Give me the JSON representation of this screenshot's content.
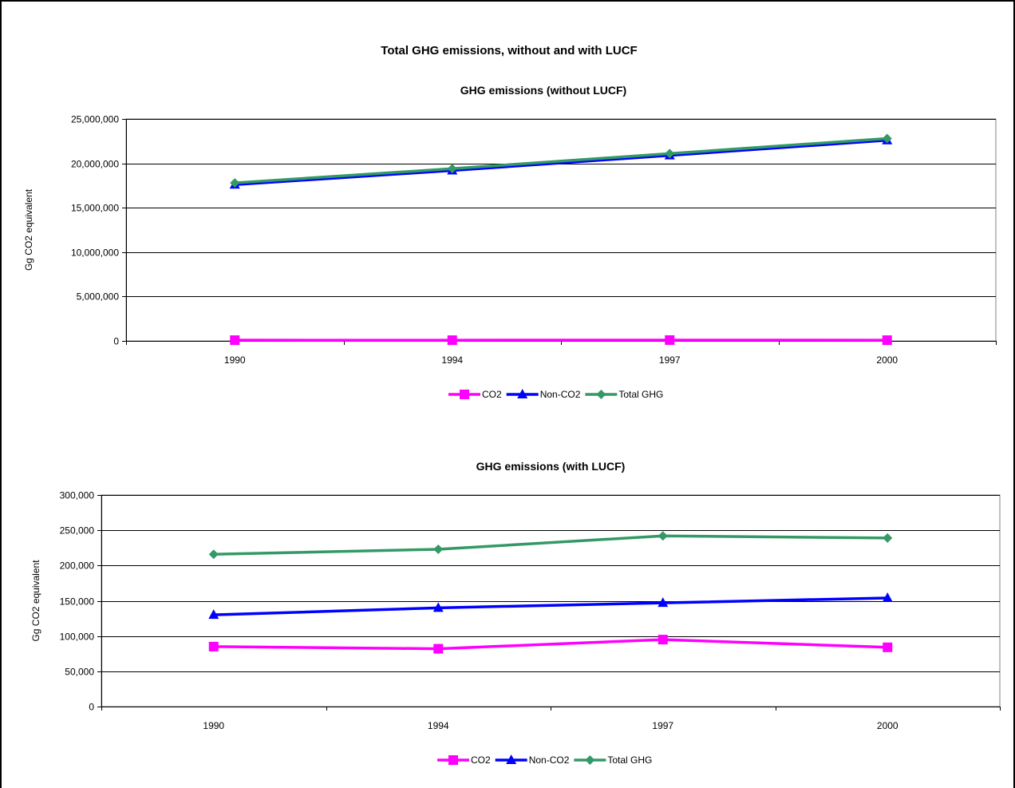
{
  "main_title": "Total GHG emissions, without and with LUCF",
  "chart_data": [
    {
      "type": "line",
      "title": "GHG emissions (without LUCF)",
      "ylabel": "Gg CO2 equivalent",
      "xlabel": "",
      "categories": [
        "1990",
        "1994",
        "1997",
        "2000"
      ],
      "ylim": [
        0,
        25000000
      ],
      "yticks": [
        0,
        5000000,
        10000000,
        15000000,
        20000000,
        25000000
      ],
      "ytick_labels": [
        "0",
        "5,000,000",
        "10,000,000",
        "15,000,000",
        "20,000,000",
        "25,000,000"
      ],
      "grid": true,
      "legend": "bottom",
      "series": [
        {
          "name": "CO2",
          "color": "#FF00FF",
          "marker": "square",
          "values": [
            85000,
            82000,
            95000,
            84000
          ]
        },
        {
          "name": "Non-CO2",
          "color": "#0000FF",
          "marker": "triangle",
          "values": [
            17600000,
            19200000,
            20900000,
            22600000
          ]
        },
        {
          "name": "Total GHG",
          "color": "#339966",
          "marker": "diamond",
          "values": [
            17800000,
            19400000,
            21100000,
            22800000
          ]
        }
      ]
    },
    {
      "type": "line",
      "title": "GHG emissions (with LUCF)",
      "ylabel": "Gg CO2 equivalent",
      "xlabel": "",
      "categories": [
        "1990",
        "1994",
        "1997",
        "2000"
      ],
      "ylim": [
        0,
        300000
      ],
      "yticks": [
        0,
        50000,
        100000,
        150000,
        200000,
        250000,
        300000
      ],
      "ytick_labels": [
        "0",
        "50,000",
        "100,000",
        "150,000",
        "200,000",
        "250,000",
        "300,000"
      ],
      "grid": true,
      "legend": "bottom",
      "series": [
        {
          "name": "CO2",
          "color": "#FF00FF",
          "marker": "square",
          "values": [
            85000,
            82000,
            95000,
            84000
          ]
        },
        {
          "name": "Non-CO2",
          "color": "#0000FF",
          "marker": "triangle",
          "values": [
            130000,
            140000,
            147000,
            154000
          ]
        },
        {
          "name": "Total GHG",
          "color": "#339966",
          "marker": "diamond",
          "values": [
            216000,
            223000,
            242000,
            239000
          ]
        }
      ]
    }
  ]
}
